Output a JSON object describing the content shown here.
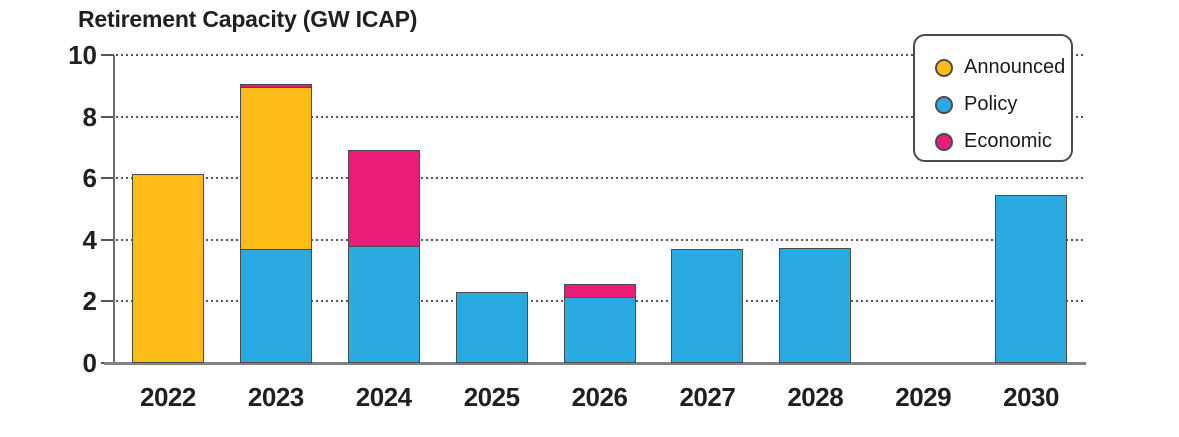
{
  "chart_data": {
    "type": "bar",
    "stacked": true,
    "title": "Retirement Capacity (GW ICAP)",
    "unit": "GW ICAP",
    "categories": [
      "2022",
      "2023",
      "2024",
      "2025",
      "2026",
      "2027",
      "2028",
      "2029",
      "2030"
    ],
    "series": [
      {
        "name": "Policy",
        "color": "#29ABE2",
        "values": [
          0,
          3.7,
          3.8,
          2.3,
          2.15,
          3.7,
          3.75,
          0,
          5.45
        ]
      },
      {
        "name": "Announced",
        "color": "#FDBD16",
        "values": [
          6.15,
          5.3,
          0,
          0,
          0,
          0,
          0,
          0,
          0
        ]
      },
      {
        "name": "Economic",
        "color": "#EA1C77",
        "values": [
          0,
          0.15,
          3.15,
          0,
          0.45,
          0,
          0,
          0,
          0
        ]
      }
    ],
    "legend": [
      {
        "label": "Announced",
        "color": "#FDBD16"
      },
      {
        "label": "Policy",
        "color": "#29ABE2"
      },
      {
        "label": "Economic",
        "color": "#EA1C77"
      }
    ],
    "legend_position": "top-right",
    "ylim": [
      0,
      10
    ],
    "yticks": [
      "0",
      "2",
      "4",
      "6",
      "8",
      "10"
    ],
    "ytick_values": [
      0,
      2,
      4,
      6,
      8,
      10
    ],
    "grid": "dotted-horizontal",
    "colors": {
      "text": "#231F20",
      "bar_outline": "#4A4B4D",
      "axis": "#6D6E71",
      "baseline": "#808285",
      "gridline": "#55565A"
    }
  }
}
